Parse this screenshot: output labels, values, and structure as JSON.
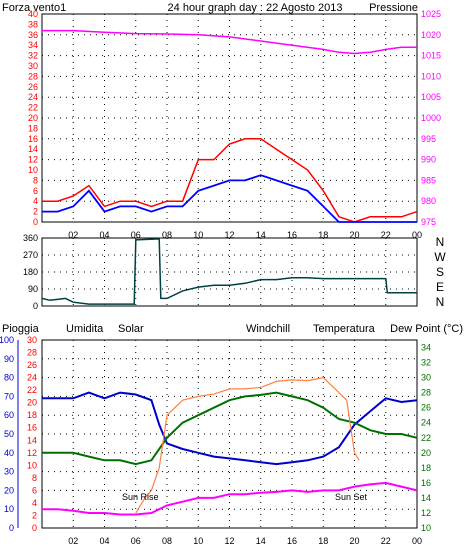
{
  "colors": {
    "wind": "#ff0000",
    "gust": "#0000ff",
    "pressure": "#ff00ff",
    "title": "#0000cc",
    "humidity": "#0000cc",
    "solar": "#ff8040",
    "windchill": "#007070",
    "temperature": "#007000",
    "dewpoint": "#ff00ff",
    "rain": "#ff0000",
    "direction": "#004040",
    "grid": "#000000",
    "sun_label": "#c08000"
  },
  "chart_data": [
    {
      "type": "line",
      "title": "24 hour graph day : 22 Agosto 2013",
      "left_label": "Forza vento1",
      "right_label": "Pressione",
      "left_ticks": [
        "0",
        "2",
        "4",
        "6",
        "8",
        "10",
        "12",
        "14",
        "16",
        "18",
        "20",
        "22",
        "24",
        "26",
        "28",
        "30",
        "32",
        "34",
        "36",
        "38",
        "40"
      ],
      "right_ticks": [
        "975",
        "980",
        "985",
        "990",
        "995",
        "1000",
        "1005",
        "1010",
        "1015",
        "1020",
        "1025"
      ],
      "x_ticks": [
        "02",
        "04",
        "06",
        "08",
        "10",
        "12",
        "14",
        "16",
        "18",
        "20",
        "22",
        "00"
      ],
      "xlim": [
        0,
        24
      ],
      "ylim": [
        0,
        40
      ],
      "y2lim": [
        975,
        1025
      ],
      "series": [
        {
          "axis": "left",
          "x": [
            0,
            1,
            2,
            3,
            4,
            5,
            6,
            7,
            8,
            9,
            10,
            11,
            12,
            13,
            14,
            15,
            16,
            17,
            18,
            19,
            20,
            21,
            22,
            23,
            24
          ],
          "values": [
            4,
            4,
            5,
            7,
            3,
            4,
            4,
            3,
            4,
            4,
            12,
            12,
            15,
            16,
            16,
            14,
            12,
            10,
            6,
            1,
            0,
            1,
            1,
            1,
            2
          ]
        },
        {
          "axis": "left",
          "x": [
            0,
            1,
            2,
            3,
            4,
            5,
            6,
            7,
            8,
            9,
            10,
            11,
            12,
            13,
            14,
            15,
            16,
            17,
            18,
            19,
            20,
            21,
            22,
            23,
            24
          ],
          "values": [
            2,
            2,
            3,
            6,
            2,
            3,
            3,
            2,
            3,
            3,
            6,
            7,
            8,
            8,
            9,
            8,
            7,
            6,
            3,
            0,
            0,
            0,
            0,
            0,
            0
          ]
        },
        {
          "axis": "right",
          "x": [
            0,
            2,
            4,
            6,
            8,
            10,
            12,
            14,
            16,
            18,
            19,
            20,
            21,
            22,
            23,
            24
          ],
          "values": [
            1021,
            1021,
            1020.6,
            1020.3,
            1020.2,
            1020,
            1019.5,
            1018.5,
            1017.5,
            1016.5,
            1015.8,
            1015.5,
            1015.8,
            1016.5,
            1017,
            1017
          ]
        }
      ]
    },
    {
      "type": "line",
      "right_label_ticks": [
        "N",
        "W",
        "S",
        "E",
        "N"
      ],
      "left_ticks": [
        "0",
        "90",
        "180",
        "270",
        "360"
      ],
      "x_ticks": [
        "02",
        "04",
        "06",
        "08",
        "10",
        "12",
        "14",
        "16",
        "18",
        "20",
        "22",
        "00"
      ],
      "xlim": [
        0,
        24
      ],
      "ylim": [
        0,
        360
      ],
      "series": [
        {
          "x": [
            0,
            0.5,
            1,
            1.5,
            2,
            3,
            4,
            5,
            5.9,
            6,
            7.5,
            7.6,
            8,
            9,
            10,
            11,
            12,
            13,
            14,
            15,
            16,
            17,
            18,
            19,
            20,
            21,
            22,
            22.1,
            23,
            24
          ],
          "values": [
            40,
            30,
            35,
            40,
            20,
            10,
            10,
            10,
            10,
            350,
            355,
            40,
            40,
            80,
            100,
            110,
            110,
            120,
            140,
            140,
            150,
            150,
            145,
            145,
            145,
            145,
            145,
            70,
            70,
            70
          ]
        }
      ]
    },
    {
      "type": "line",
      "labels": {
        "rain": "Pioggia",
        "humidity": "Umidita",
        "solar": "Solar",
        "windchill": "Windchill",
        "temperature": "Temperatura",
        "dewpoint": "Dew Point (°C)",
        "sunrise": "Sun Rise",
        "sunset": "Sun Set"
      },
      "humidity_ticks": [
        "0",
        "10",
        "20",
        "30",
        "40",
        "50",
        "60",
        "70",
        "80",
        "90",
        "100"
      ],
      "rain_ticks": [
        "0",
        "2",
        "4",
        "6",
        "8",
        "10",
        "12",
        "14",
        "16",
        "18",
        "20",
        "22",
        "24",
        "26",
        "28",
        "30"
      ],
      "temp_ticks": [
        "10",
        "12",
        "14",
        "16",
        "18",
        "20",
        "22",
        "24",
        "26",
        "28",
        "30",
        "32",
        "34"
      ],
      "x_ticks": [
        "02",
        "04",
        "06",
        "08",
        "10",
        "12",
        "14",
        "16",
        "18",
        "20",
        "22",
        "00"
      ],
      "xlim": [
        0,
        24
      ],
      "humidity_lim": [
        0,
        100
      ],
      "temp_lim": [
        10,
        35
      ],
      "series": [
        {
          "key": "humidity",
          "x": [
            0,
            2,
            3,
            4,
            5,
            6,
            7,
            7.5,
            8,
            9,
            10,
            11,
            12,
            13,
            14,
            15,
            16,
            17,
            18,
            19,
            20,
            21,
            22,
            23,
            24
          ],
          "values": [
            69,
            69,
            72,
            69,
            72,
            71,
            68,
            55,
            45,
            42,
            40,
            38,
            37,
            36,
            35,
            34,
            35,
            36,
            38,
            43,
            55,
            62,
            69,
            67,
            68
          ]
        },
        {
          "key": "temperature",
          "x": [
            0,
            1,
            2,
            3,
            4,
            5,
            6,
            7,
            8,
            9,
            10,
            11,
            12,
            13,
            14,
            15,
            16,
            17,
            18,
            19,
            20,
            21,
            22,
            23,
            24
          ],
          "values": [
            20,
            20,
            20,
            19.5,
            19,
            19,
            18.5,
            19,
            22,
            24,
            25,
            26,
            27,
            27.5,
            27.7,
            28,
            27.5,
            27,
            26,
            24.5,
            24,
            23,
            22.5,
            22.5,
            22
          ]
        },
        {
          "key": "solar",
          "x": [
            6,
            6.3,
            6.6,
            7,
            7.5,
            8,
            8.5,
            9,
            10,
            11,
            12,
            13,
            14,
            15,
            16,
            17,
            18,
            19,
            19.5,
            20,
            20.3
          ],
          "values": [
            12,
            13,
            14,
            15,
            18,
            25,
            26,
            27,
            27.5,
            27.8,
            28.5,
            28.5,
            28.7,
            29.5,
            29.7,
            29.6,
            30,
            28,
            27,
            20,
            19
          ]
        },
        {
          "key": "dewpoint",
          "x": [
            0,
            1,
            2,
            3,
            4,
            5,
            6,
            7,
            8,
            9,
            10,
            11,
            12,
            13,
            14,
            15,
            16,
            17,
            18,
            19,
            20,
            21,
            22,
            23,
            24
          ],
          "values": [
            12.5,
            12.5,
            12.3,
            12,
            12,
            11.8,
            11.8,
            12,
            13,
            13.5,
            14,
            14,
            14.5,
            14.5,
            14.7,
            14.8,
            15,
            14.8,
            15,
            15,
            15.5,
            15.8,
            16,
            15.5,
            15
          ]
        }
      ]
    }
  ]
}
